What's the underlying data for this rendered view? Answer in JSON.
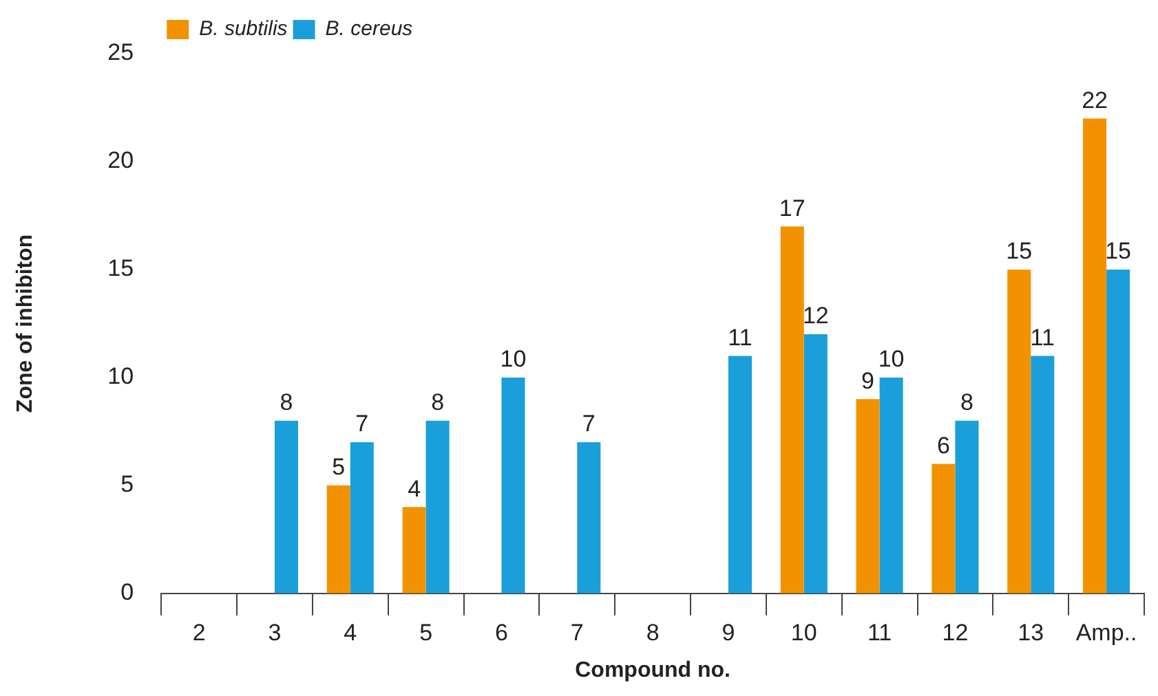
{
  "chart_data": {
    "type": "bar",
    "xlabel": "Compound no.",
    "ylabel": "Zone of inhibiton",
    "categories": [
      "2",
      "3",
      "4",
      "5",
      "6",
      "7",
      "8",
      "9",
      "10",
      "11",
      "12",
      "13",
      "Amp.."
    ],
    "series": [
      {
        "name": "B. subtilis",
        "color": "#f39200",
        "values": [
          null,
          null,
          5,
          4,
          null,
          null,
          null,
          null,
          17,
          9,
          6,
          15,
          22
        ]
      },
      {
        "name": "B. cereus",
        "color": "#1a9fdb",
        "values": [
          null,
          8,
          7,
          8,
          10,
          7,
          null,
          11,
          12,
          10,
          8,
          11,
          15
        ]
      }
    ],
    "ylim": [
      0,
      25
    ],
    "yticks": [
      0,
      5,
      10,
      15,
      20,
      25
    ],
    "grid": false,
    "legend": "top left",
    "data_labels": true
  }
}
